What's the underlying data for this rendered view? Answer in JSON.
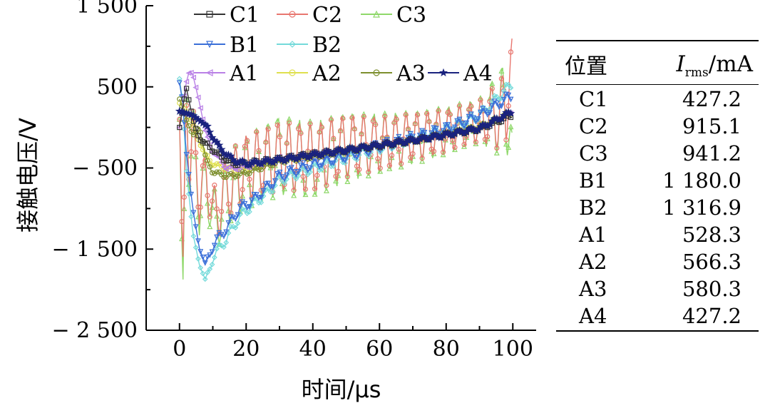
{
  "chart_data": {
    "type": "line",
    "xlabel": "时间/μs",
    "ylabel": "接触电压/V",
    "xlim": [
      -10,
      107
    ],
    "ylim": [
      -2500,
      1500
    ],
    "xticks": [
      0,
      20,
      40,
      60,
      80,
      100
    ],
    "xtick_labels": [
      "0",
      "20",
      "40",
      "60",
      "80",
      "100"
    ],
    "yticks": [
      -2500,
      -1500,
      -500,
      500,
      1500
    ],
    "ytick_labels": [
      "− 2 500",
      "− 1 500",
      "− 500",
      "500",
      "1 500"
    ],
    "legend_position": "top",
    "series": [
      {
        "name": "C1",
        "color": "#333333",
        "marker": "square",
        "x": [
          0,
          2,
          4,
          6,
          8,
          12,
          16,
          20,
          30,
          40,
          50,
          60,
          70,
          80,
          90,
          100
        ],
        "y": [
          0,
          500,
          100,
          -150,
          -200,
          -350,
          -450,
          -440,
          -390,
          -330,
          -280,
          -220,
          -160,
          -90,
          -20,
          150
        ]
      },
      {
        "name": "C2",
        "color": "#e8766f",
        "marker": "circle",
        "x": [
          0,
          1,
          2,
          3,
          4,
          6,
          8,
          10,
          15,
          20,
          30,
          40,
          50,
          60,
          70,
          80,
          90,
          98,
          100
        ],
        "y": [
          100,
          -1700,
          400,
          -900,
          300,
          -1000,
          -500,
          -1100,
          -700,
          -500,
          -350,
          -380,
          -230,
          -200,
          -120,
          -40,
          80,
          200,
          1160
        ],
        "amplitude": [
          0,
          0,
          0,
          0,
          0,
          300,
          300,
          350,
          400,
          400,
          420,
          420,
          380,
          330,
          290,
          260,
          250,
          500,
          0
        ]
      },
      {
        "name": "C3",
        "color": "#8fd86a",
        "marker": "triangle",
        "x": [
          0,
          1,
          2,
          3,
          4,
          6,
          8,
          10,
          15,
          20,
          30,
          40,
          50,
          60,
          70,
          80,
          90,
          98,
          100
        ],
        "y": [
          100,
          -2000,
          500,
          -1000,
          300,
          -1100,
          -550,
          -1200,
          -750,
          -550,
          -350,
          -400,
          -250,
          -200,
          -130,
          -40,
          80,
          220,
          -180
        ],
        "amplitude": [
          0,
          0,
          0,
          0,
          0,
          350,
          350,
          400,
          450,
          450,
          480,
          470,
          420,
          370,
          320,
          290,
          270,
          600,
          0
        ]
      },
      {
        "name": "B1",
        "color": "#3a6fd8",
        "marker": "triangle-down",
        "x": [
          0,
          1,
          2,
          4,
          6,
          8,
          10,
          14,
          18,
          22,
          26,
          30,
          40,
          50,
          60,
          70,
          80,
          90,
          100
        ],
        "y": [
          550,
          300,
          -300,
          -1000,
          -1500,
          -1700,
          -1450,
          -1250,
          -1000,
          -900,
          -750,
          -600,
          -450,
          -350,
          -230,
          -130,
          -20,
          150,
          400
        ]
      },
      {
        "name": "B2",
        "color": "#74dada",
        "marker": "diamond",
        "x": [
          0,
          1,
          2,
          4,
          6,
          8,
          10,
          14,
          18,
          22,
          26,
          30,
          40,
          50,
          60,
          70,
          80,
          90,
          100
        ],
        "y": [
          600,
          300,
          -500,
          -1300,
          -1700,
          -1900,
          -1600,
          -1380,
          -1100,
          -950,
          -820,
          -650,
          -500,
          -380,
          -250,
          -140,
          -30,
          150,
          550
        ]
      },
      {
        "name": "A1",
        "color": "#b980e6",
        "marker": "triangle-left",
        "x": [
          0,
          2,
          3,
          4,
          6,
          8,
          10,
          14,
          18,
          20,
          30,
          40,
          50,
          60,
          70,
          80,
          90,
          100
        ],
        "y": [
          0,
          550,
          700,
          650,
          300,
          -100,
          -300,
          -500,
          -500,
          -480,
          -380,
          -330,
          -280,
          -220,
          -160,
          -90,
          -10,
          200
        ]
      },
      {
        "name": "A2",
        "color": "#dfe04e",
        "marker": "circle",
        "x": [
          0,
          2,
          4,
          6,
          8,
          10,
          14,
          18,
          20,
          30,
          40,
          50,
          60,
          70,
          80,
          90,
          100
        ],
        "y": [
          300,
          200,
          50,
          -200,
          -350,
          -450,
          -500,
          -520,
          -500,
          -400,
          -350,
          -290,
          -220,
          -160,
          -80,
          10,
          180
        ]
      },
      {
        "name": "A3",
        "color": "#7d8f2e",
        "marker": "circle",
        "x": [
          0,
          2,
          4,
          6,
          8,
          10,
          14,
          18,
          20,
          30,
          40,
          50,
          60,
          70,
          80,
          90,
          100
        ],
        "y": [
          350,
          100,
          -100,
          0,
          -400,
          -550,
          -600,
          -580,
          -560,
          -420,
          -360,
          -290,
          -230,
          -170,
          -90,
          0,
          200
        ]
      },
      {
        "name": "A4",
        "color": "#1a237e",
        "marker": "star",
        "x": [
          0,
          4,
          8,
          12,
          16,
          20,
          30,
          40,
          50,
          60,
          70,
          80,
          90,
          100
        ],
        "y": [
          200,
          150,
          20,
          -250,
          -400,
          -450,
          -400,
          -340,
          -280,
          -220,
          -160,
          -90,
          -10,
          200
        ]
      }
    ]
  },
  "table": {
    "header": {
      "position": "位置",
      "current_symbol": "I",
      "current_sub": "rms",
      "current_unit": "/mA"
    },
    "rows": [
      {
        "position": "C1",
        "value": "427.2"
      },
      {
        "position": "C2",
        "value": "915.1"
      },
      {
        "position": "C3",
        "value": "941.2"
      },
      {
        "position": "B1",
        "value": "1 180.0"
      },
      {
        "position": "B2",
        "value": "1 316.9"
      },
      {
        "position": "A1",
        "value": "528.3"
      },
      {
        "position": "A2",
        "value": "566.3"
      },
      {
        "position": "A3",
        "value": "580.3"
      },
      {
        "position": "A4",
        "value": "427.2"
      }
    ]
  }
}
